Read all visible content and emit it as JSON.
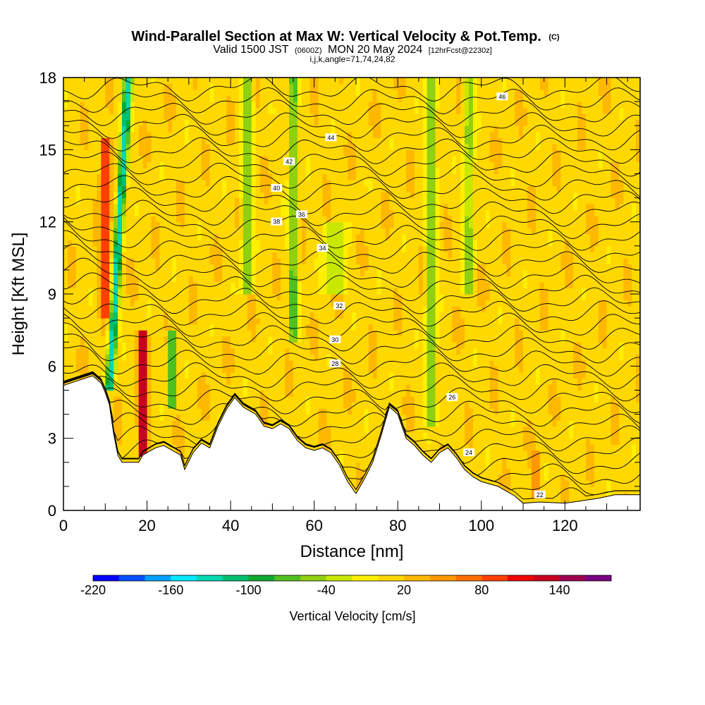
{
  "title": {
    "line1_main": "Wind-Parallel Section at Max W: Vertical Velocity & Pot.Temp.",
    "line1_unit": "(C)",
    "line2_a": "Valid 1500 JST",
    "line2_b": "(0600Z)",
    "line2_c": "MON 20 May 2024",
    "line2_d": "[12hrFcst@2230z]",
    "line3": "i,j,k,angle=71,74,24,82"
  },
  "colors": {
    "terrain": "#ffffff",
    "contour": "#000000",
    "colorbar": [
      "#0000ff",
      "#0050ff",
      "#00a0ff",
      "#00e8ff",
      "#00d8b0",
      "#00c070",
      "#10a830",
      "#50c020",
      "#90d010",
      "#c8e800",
      "#fff000",
      "#ffd800",
      "#ffb800",
      "#ff9800",
      "#ff7000",
      "#ff4000",
      "#f00000",
      "#c80020",
      "#a00050",
      "#780080"
    ]
  },
  "chart_data": {
    "type": "heatmap",
    "xlabel": "Distance [nm]",
    "ylabel": "Height [Kft MSL]",
    "xlim": [
      0,
      138
    ],
    "ylim": [
      0,
      18
    ],
    "x_ticks": [
      0,
      20,
      40,
      60,
      80,
      100,
      120
    ],
    "x_tick_labels": [
      "0",
      "20",
      "40",
      "60",
      "80",
      "100",
      "120"
    ],
    "y_ticks": [
      0,
      3,
      6,
      9,
      12,
      15,
      18
    ],
    "y_tick_labels": [
      "0",
      "3",
      "6",
      "9",
      "12",
      "15",
      "18"
    ],
    "colorbar": {
      "title": "Vertical Velocity [cm/s]",
      "min": -220,
      "max": 180,
      "step": 20,
      "tick_values": [
        -220,
        -160,
        -100,
        -40,
        20,
        80,
        140
      ],
      "tick_labels": [
        "-220",
        "-160",
        "-100",
        "-40",
        "20",
        "80",
        "140"
      ]
    },
    "terrain_profile": [
      [
        0,
        5.2
      ],
      [
        7,
        5.6
      ],
      [
        9,
        5.3
      ],
      [
        10,
        4.9
      ],
      [
        11,
        4.4
      ],
      [
        12,
        3.2
      ],
      [
        13,
        2.3
      ],
      [
        14,
        2.0
      ],
      [
        18,
        2.0
      ],
      [
        19,
        2.3
      ],
      [
        22,
        2.6
      ],
      [
        24,
        2.7
      ],
      [
        26,
        2.5
      ],
      [
        28,
        2.3
      ],
      [
        29,
        1.7
      ],
      [
        31,
        2.4
      ],
      [
        33,
        2.8
      ],
      [
        35,
        2.6
      ],
      [
        37,
        3.5
      ],
      [
        39,
        4.2
      ],
      [
        41,
        4.7
      ],
      [
        43,
        4.3
      ],
      [
        46,
        4.0
      ],
      [
        48,
        3.5
      ],
      [
        50,
        3.4
      ],
      [
        52,
        3.6
      ],
      [
        54,
        3.4
      ],
      [
        56,
        2.9
      ],
      [
        58,
        2.6
      ],
      [
        60,
        2.5
      ],
      [
        62,
        2.6
      ],
      [
        64,
        2.4
      ],
      [
        66,
        1.9
      ],
      [
        68,
        1.2
      ],
      [
        70,
        0.7
      ],
      [
        72,
        1.3
      ],
      [
        74,
        2.0
      ],
      [
        76,
        3.1
      ],
      [
        78,
        4.3
      ],
      [
        80,
        4.0
      ],
      [
        82,
        3.0
      ],
      [
        84,
        2.7
      ],
      [
        86,
        2.3
      ],
      [
        88,
        2.0
      ],
      [
        90,
        2.4
      ],
      [
        92,
        2.6
      ],
      [
        94,
        2.2
      ],
      [
        96,
        1.7
      ],
      [
        98,
        1.4
      ],
      [
        100,
        1.2
      ],
      [
        104,
        1.0
      ],
      [
        108,
        0.6
      ],
      [
        110,
        0.3
      ],
      [
        114,
        0.35
      ],
      [
        120,
        0.3
      ],
      [
        128,
        0.5
      ],
      [
        132,
        0.65
      ],
      [
        138,
        0.65
      ]
    ],
    "theta_contours": [
      {
        "label": "22",
        "label_x": 114,
        "base": 0.5
      },
      {
        "label": "24",
        "label_x": 97,
        "base": 2.4
      },
      {
        "label": "26",
        "label_x": 93,
        "base": 4.7
      },
      {
        "label": "28",
        "label_x": 65,
        "base": 6.1
      },
      {
        "label": "30",
        "label_x": 65,
        "base": 7.1
      },
      {
        "label": "32",
        "label_x": 66,
        "base": 8.5
      },
      {
        "label": "34",
        "label_x": 62,
        "base": 10.9
      },
      {
        "label": "36",
        "label_x": 57,
        "base": 12.3
      },
      {
        "label": "38",
        "label_x": 51,
        "base": 12.0
      },
      {
        "label": "40",
        "label_x": 51,
        "base": 13.4
      },
      {
        "label": "42",
        "label_x": 54,
        "base": 14.5
      },
      {
        "label": "44",
        "label_x": 64,
        "base": 15.5
      },
      {
        "label": "46",
        "label_x": 105,
        "base": 17.2
      }
    ],
    "vertical_velocity_features": [
      {
        "x": 11,
        "ymin": 5.0,
        "ymax": 18,
        "value": -140,
        "halfwidth": 1.2
      },
      {
        "x": 10,
        "ymin": 8.0,
        "ymax": 15.5,
        "value": 110,
        "halfwidth": 1.3
      },
      {
        "x": 19,
        "ymin": 2.2,
        "ymax": 7.5,
        "value": 170,
        "halfwidth": 1.2
      },
      {
        "x": 26,
        "ymin": 4.2,
        "ymax": 7.5,
        "value": -100,
        "halfwidth": 1.0
      },
      {
        "x": 44,
        "ymin": 9.0,
        "ymax": 18,
        "value": -70,
        "halfwidth": 1.5
      },
      {
        "x": 55,
        "ymin": 7.0,
        "ymax": 18,
        "value": -80,
        "halfwidth": 1.2
      },
      {
        "x": 65,
        "ymin": 9.0,
        "ymax": 12,
        "value": -40,
        "halfwidth": 3.0
      },
      {
        "x": 88,
        "ymin": 3.5,
        "ymax": 18,
        "value": -60,
        "halfwidth": 1.5
      },
      {
        "x": 97,
        "ymin": 9.0,
        "ymax": 18,
        "value": -50,
        "halfwidth": 1.5
      },
      {
        "x": 113,
        "ymin": 0.4,
        "ymax": 2.5,
        "value": 60,
        "halfwidth": 1.0
      }
    ]
  }
}
